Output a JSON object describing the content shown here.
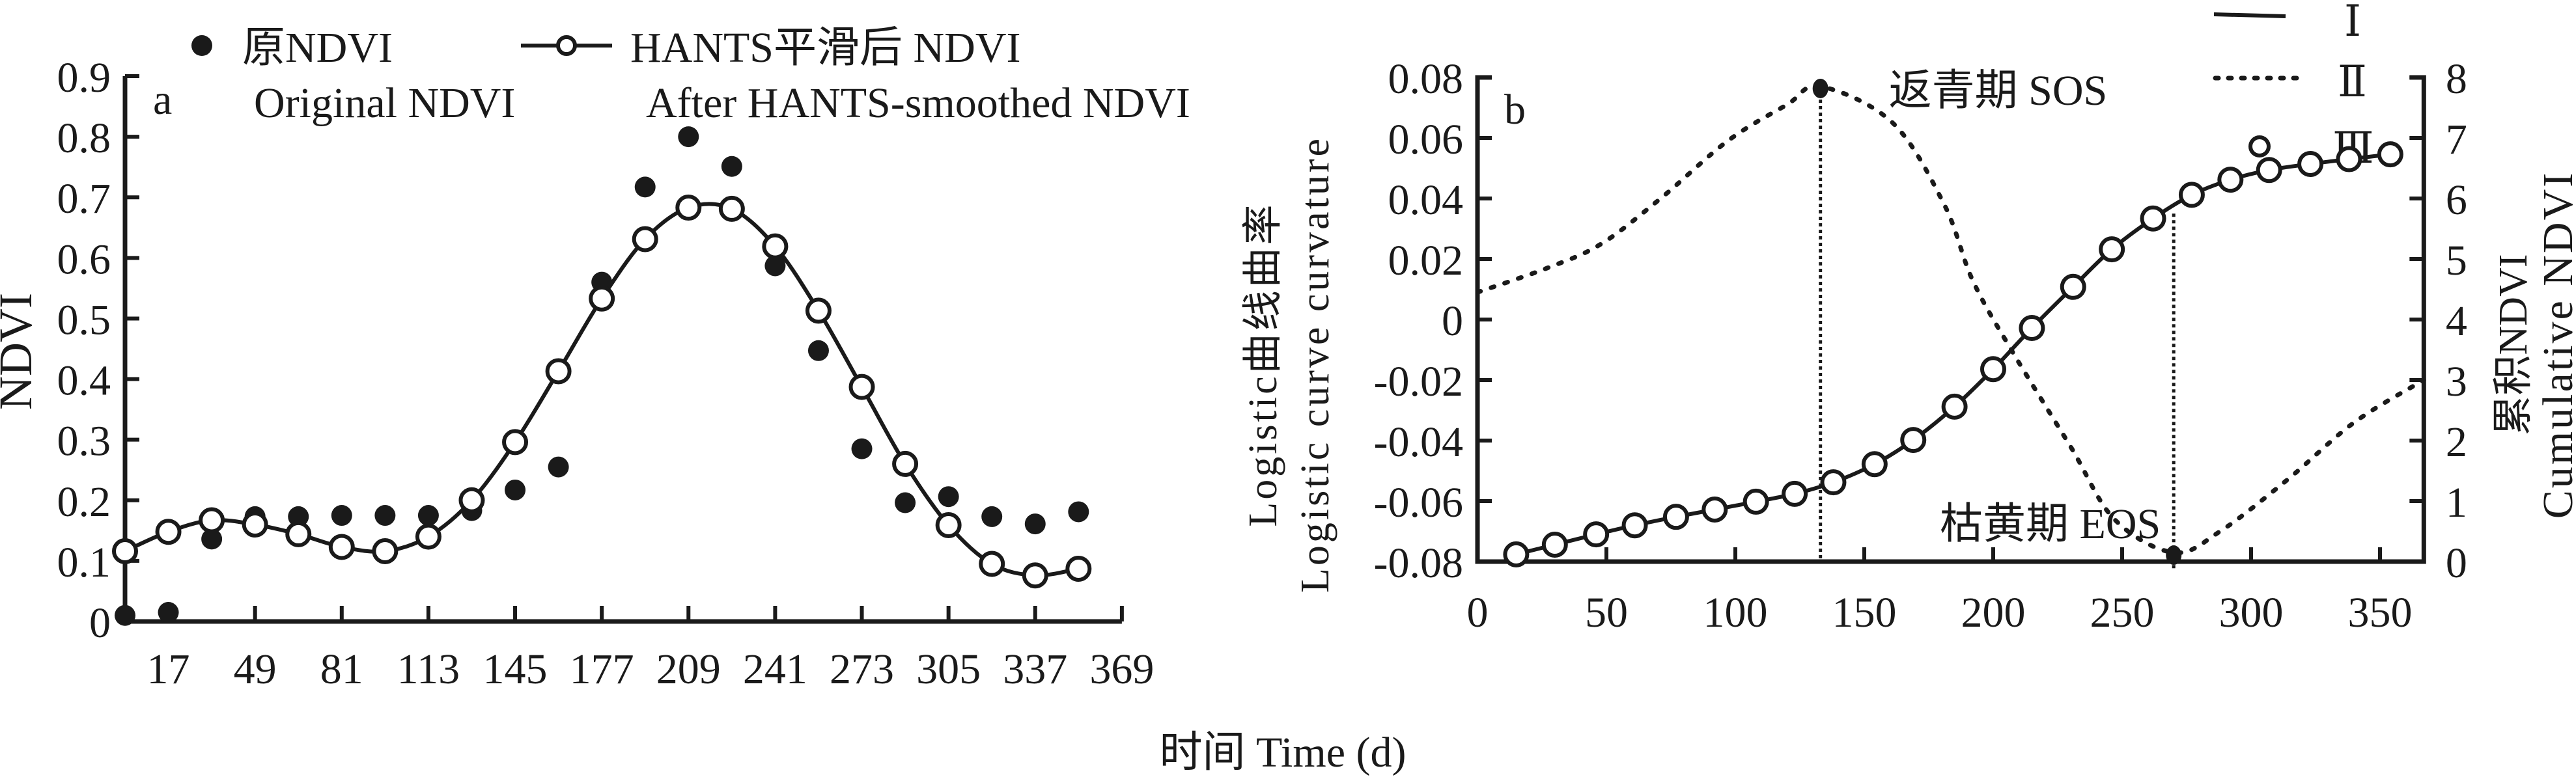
{
  "axis_title_x": "时间 Time (d)",
  "chart_data": [
    {
      "id": "a",
      "type": "scatter",
      "panel_label": "a",
      "title": "",
      "xlabel": "",
      "ylabel": "NDVI",
      "xlim": [
        1,
        369
      ],
      "ylim": [
        0,
        0.9
      ],
      "x_ticks": [
        17,
        49,
        81,
        113,
        145,
        177,
        209,
        241,
        273,
        305,
        337,
        369
      ],
      "y_ticks": [
        0,
        0.1,
        0.2,
        0.3,
        0.4,
        0.5,
        0.6,
        0.7,
        0.8,
        0.9
      ],
      "y_tick_labels": [
        "0",
        "0.1",
        "0.2",
        "0.3",
        "0.4",
        "0.5",
        "0.6",
        "0.7",
        "0.8",
        "0.9"
      ],
      "grid": false,
      "legend": {
        "placement": "top",
        "entries": [
          {
            "marker": "filled-circle",
            "label_cn": "原NDVI",
            "label_en": "Original NDVI"
          },
          {
            "marker": "line-open-circle",
            "label_cn": "HANTS平滑后 NDVI",
            "label_en": "After HANTS-smoothed NDVI"
          }
        ]
      },
      "x": [
        1,
        17,
        33,
        49,
        65,
        81,
        97,
        113,
        129,
        145,
        161,
        177,
        193,
        209,
        225,
        241,
        257,
        273,
        289,
        305,
        321,
        337,
        353
      ],
      "series": [
        {
          "name": "原NDVI / Original NDVI",
          "style": "filled-circle",
          "values": [
            0.01,
            0.015,
            0.136,
            0.173,
            0.173,
            0.175,
            0.175,
            0.175,
            0.183,
            0.217,
            0.255,
            0.56,
            0.717,
            0.8,
            0.751,
            0.587,
            0.447,
            0.285,
            0.196,
            0.206,
            0.173,
            0.161,
            0.181
          ]
        },
        {
          "name": "HANTS平滑后 NDVI / After HANTS-smoothed NDVI",
          "style": "line-open-circle",
          "values": [
            0.116,
            0.148,
            0.167,
            0.16,
            0.144,
            0.123,
            0.116,
            0.14,
            0.2,
            0.296,
            0.413,
            0.533,
            0.631,
            0.683,
            0.681,
            0.619,
            0.513,
            0.387,
            0.26,
            0.159,
            0.095,
            0.076,
            0.087
          ]
        }
      ]
    },
    {
      "id": "b",
      "type": "line",
      "panel_label": "b",
      "title": "",
      "xlabel": "",
      "ylabel_left_cn": "Logistic曲线曲率",
      "ylabel_left_en": "Logistic curve curvature",
      "ylabel_right_cn": "累积NDVI",
      "ylabel_right_en": "Cumulative NDVI",
      "xlim": [
        0,
        367
      ],
      "ylim_left": [
        -0.08,
        0.08
      ],
      "ylim_right": [
        0,
        8
      ],
      "x_ticks": [
        0,
        50,
        100,
        150,
        200,
        250,
        300,
        350
      ],
      "y_ticks_left": [
        -0.08,
        -0.06,
        -0.04,
        -0.02,
        0,
        0.02,
        0.04,
        0.06,
        0.08
      ],
      "y_tick_labels_left": [
        "-0.08",
        "-0.06",
        "-0.04",
        "-0.02",
        "0",
        "0.02",
        "0.04",
        "0.06",
        "0.08"
      ],
      "y_ticks_right": [
        0,
        1,
        2,
        3,
        4,
        5,
        6,
        7,
        8
      ],
      "y_tick_labels_right": [
        "0",
        "1",
        "2",
        "3",
        "4",
        "5",
        "6",
        "7",
        "8"
      ],
      "grid": false,
      "legend": {
        "placement": "top-right",
        "entries": [
          {
            "marker": "solid-line",
            "label": "Ⅰ"
          },
          {
            "marker": "dotted-line",
            "label": "Ⅱ"
          },
          {
            "marker": "open-circle",
            "label": "Ⅲ"
          }
        ]
      },
      "annotations": [
        {
          "label": "返青期 SOS",
          "x": 133,
          "y": 0.077,
          "axis": "left"
        },
        {
          "label": "枯黄期 EOS",
          "x": 270,
          "y": -0.077,
          "axis": "left"
        }
      ],
      "series": [
        {
          "name": "Ⅰ",
          "axis": "right",
          "style": "solid-line",
          "x": [
            15,
            30,
            46,
            61,
            77,
            92,
            108,
            123,
            138,
            154,
            169,
            185,
            200,
            215,
            231,
            246,
            262,
            277,
            292,
            307,
            323,
            338,
            354
          ],
          "values": [
            0.12,
            0.28,
            0.45,
            0.6,
            0.74,
            0.86,
            0.99,
            1.12,
            1.31,
            1.61,
            2.01,
            2.56,
            3.18,
            3.86,
            4.54,
            5.16,
            5.67,
            6.06,
            6.31,
            6.47,
            6.57,
            6.65,
            6.73
          ]
        },
        {
          "name": "Ⅱ",
          "axis": "left",
          "style": "dotted-line",
          "x": [
            0,
            27,
            48,
            71,
            97,
            120,
            133,
            161,
            181,
            192,
            207,
            230,
            247,
            270,
            288,
            314,
            340,
            367
          ],
          "values": [
            0.009,
            0.017,
            0.025,
            0.04,
            0.059,
            0.071,
            0.077,
            0.065,
            0.038,
            0.013,
            -0.01,
            -0.042,
            -0.066,
            -0.077,
            -0.07,
            -0.053,
            -0.034,
            -0.02
          ]
        },
        {
          "name": "Ⅲ",
          "axis": "right",
          "style": "open-circle",
          "x": [
            15,
            30,
            46,
            61,
            77,
            92,
            108,
            123,
            138,
            154,
            169,
            185,
            200,
            215,
            231,
            246,
            262,
            277,
            292,
            307,
            323,
            338,
            354
          ],
          "values": [
            0.12,
            0.28,
            0.45,
            0.6,
            0.74,
            0.86,
            0.99,
            1.12,
            1.31,
            1.61,
            2.01,
            2.56,
            3.18,
            3.86,
            4.54,
            5.16,
            5.67,
            6.06,
            6.31,
            6.47,
            6.57,
            6.65,
            6.73
          ]
        }
      ]
    }
  ]
}
